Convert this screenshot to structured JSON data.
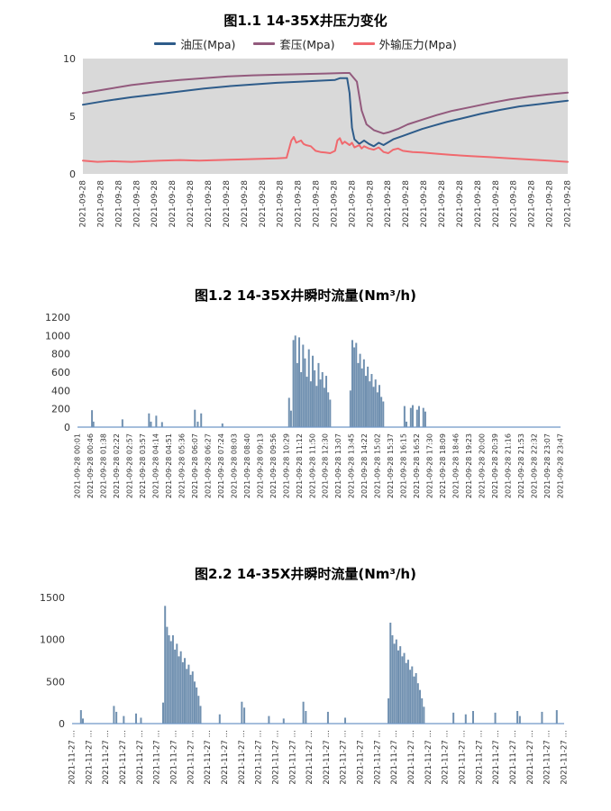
{
  "chart_data": [
    {
      "type": "line",
      "title": "图1.1 14-35X井压力变化",
      "ylim": [
        0,
        10
      ],
      "yticks": [
        0,
        5,
        10
      ],
      "plot_bg": "#d9d9d9",
      "legend_position": "top",
      "grid": false,
      "x_labels": [
        "2021-09-28",
        "2021-09-28",
        "2021-09-28",
        "2021-09-28",
        "2021-09-28",
        "2021-09-28",
        "2021-09-28",
        "2021-09-28",
        "2021-09-28",
        "2021-09-28",
        "2021-09-28",
        "2021-09-28",
        "2021-09-28",
        "2021-09-28",
        "2021-09-28",
        "2021-09-28",
        "2021-09-28",
        "2021-09-28",
        "2021-09-28",
        "2021-09-28",
        "2021-09-28",
        "2021-09-28",
        "2021-09-28",
        "2021-09-28",
        "2021-09-28",
        "2021-09-28",
        "2021-09-28",
        "2021-09-28"
      ],
      "series": [
        {
          "name": "油压(Mpa)",
          "color": "#2e5c8a",
          "points": [
            [
              0,
              6.0
            ],
            [
              0.05,
              6.35
            ],
            [
              0.1,
              6.65
            ],
            [
              0.15,
              6.9
            ],
            [
              0.2,
              7.15
            ],
            [
              0.25,
              7.4
            ],
            [
              0.3,
              7.6
            ],
            [
              0.35,
              7.75
            ],
            [
              0.4,
              7.9
            ],
            [
              0.45,
              8.0
            ],
            [
              0.5,
              8.1
            ],
            [
              0.52,
              8.15
            ],
            [
              0.53,
              8.3
            ],
            [
              0.545,
              8.3
            ],
            [
              0.55,
              7.0
            ],
            [
              0.555,
              4.0
            ],
            [
              0.56,
              3.0
            ],
            [
              0.57,
              2.6
            ],
            [
              0.58,
              2.9
            ],
            [
              0.59,
              2.6
            ],
            [
              0.6,
              2.4
            ],
            [
              0.61,
              2.7
            ],
            [
              0.62,
              2.5
            ],
            [
              0.64,
              3.0
            ],
            [
              0.66,
              3.3
            ],
            [
              0.68,
              3.6
            ],
            [
              0.7,
              3.9
            ],
            [
              0.72,
              4.15
            ],
            [
              0.75,
              4.5
            ],
            [
              0.78,
              4.8
            ],
            [
              0.82,
              5.2
            ],
            [
              0.86,
              5.55
            ],
            [
              0.9,
              5.85
            ],
            [
              0.94,
              6.05
            ],
            [
              0.97,
              6.2
            ],
            [
              1,
              6.35
            ]
          ]
        },
        {
          "name": "套压(Mpa)",
          "color": "#935a7d",
          "points": [
            [
              0,
              7.0
            ],
            [
              0.05,
              7.35
            ],
            [
              0.1,
              7.7
            ],
            [
              0.15,
              7.95
            ],
            [
              0.2,
              8.15
            ],
            [
              0.25,
              8.3
            ],
            [
              0.3,
              8.45
            ],
            [
              0.35,
              8.55
            ],
            [
              0.4,
              8.6
            ],
            [
              0.45,
              8.65
            ],
            [
              0.5,
              8.7
            ],
            [
              0.54,
              8.75
            ],
            [
              0.55,
              8.75
            ],
            [
              0.565,
              8.0
            ],
            [
              0.575,
              5.5
            ],
            [
              0.585,
              4.3
            ],
            [
              0.6,
              3.8
            ],
            [
              0.62,
              3.5
            ],
            [
              0.63,
              3.6
            ],
            [
              0.65,
              3.9
            ],
            [
              0.67,
              4.3
            ],
            [
              0.7,
              4.7
            ],
            [
              0.73,
              5.1
            ],
            [
              0.76,
              5.45
            ],
            [
              0.8,
              5.8
            ],
            [
              0.84,
              6.15
            ],
            [
              0.88,
              6.45
            ],
            [
              0.92,
              6.7
            ],
            [
              0.96,
              6.9
            ],
            [
              1,
              7.05
            ]
          ]
        },
        {
          "name": "外输压力(Mpa)",
          "color": "#f0696e",
          "points": [
            [
              0,
              1.15
            ],
            [
              0.03,
              1.05
            ],
            [
              0.06,
              1.1
            ],
            [
              0.1,
              1.05
            ],
            [
              0.13,
              1.1
            ],
            [
              0.16,
              1.15
            ],
            [
              0.2,
              1.2
            ],
            [
              0.24,
              1.15
            ],
            [
              0.28,
              1.2
            ],
            [
              0.32,
              1.25
            ],
            [
              0.36,
              1.3
            ],
            [
              0.4,
              1.35
            ],
            [
              0.42,
              1.4
            ],
            [
              0.43,
              2.9
            ],
            [
              0.435,
              3.2
            ],
            [
              0.44,
              2.7
            ],
            [
              0.45,
              2.9
            ],
            [
              0.455,
              2.6
            ],
            [
              0.46,
              2.5
            ],
            [
              0.47,
              2.4
            ],
            [
              0.475,
              2.2
            ],
            [
              0.48,
              2.0
            ],
            [
              0.49,
              1.9
            ],
            [
              0.5,
              1.85
            ],
            [
              0.51,
              1.8
            ],
            [
              0.52,
              2.0
            ],
            [
              0.525,
              2.9
            ],
            [
              0.53,
              3.1
            ],
            [
              0.535,
              2.6
            ],
            [
              0.54,
              2.8
            ],
            [
              0.55,
              2.5
            ],
            [
              0.555,
              2.7
            ],
            [
              0.56,
              2.3
            ],
            [
              0.57,
              2.5
            ],
            [
              0.575,
              2.2
            ],
            [
              0.58,
              2.4
            ],
            [
              0.59,
              2.2
            ],
            [
              0.6,
              2.1
            ],
            [
              0.61,
              2.3
            ],
            [
              0.62,
              1.9
            ],
            [
              0.63,
              1.8
            ],
            [
              0.64,
              2.1
            ],
            [
              0.65,
              2.2
            ],
            [
              0.66,
              2.0
            ],
            [
              0.68,
              1.9
            ],
            [
              0.7,
              1.85
            ],
            [
              0.73,
              1.75
            ],
            [
              0.76,
              1.65
            ],
            [
              0.8,
              1.55
            ],
            [
              0.84,
              1.45
            ],
            [
              0.88,
              1.35
            ],
            [
              0.92,
              1.25
            ],
            [
              0.96,
              1.15
            ],
            [
              1,
              1.05
            ]
          ]
        }
      ]
    },
    {
      "type": "bar",
      "title": "图1.2 14-35X井瞬时流量(Nm³/h)",
      "ylim": [
        0,
        1200
      ],
      "yticks": [
        0,
        200,
        400,
        600,
        800,
        1000,
        1200
      ],
      "bar_color": "#7090b0",
      "axis_color": "#6f96c6",
      "grid": false,
      "x_labels": [
        "2021-09-28 00:01",
        "2021-09-28 00:46",
        "2021-09-28 01:38",
        "2021-09-28 02:22",
        "2021-09-28 02:57",
        "2021-09-28 03:57",
        "2021-09-28 04:14",
        "2021-09-28 04:51",
        "2021-09-28 05:36",
        "2021-09-28 06:07",
        "2021-09-28 06:27",
        "2021-09-28 07:24",
        "2021-09-28 08:03",
        "2021-09-28 08:40",
        "2021-09-28 09:13",
        "2021-09-28 09:56",
        "2021-09-28 10:29",
        "2021-09-28 11:12",
        "2021-09-28 11:50",
        "2021-09-28 12:30",
        "2021-09-28 13:07",
        "2021-09-28 13:45",
        "2021-09-28 14:22",
        "2021-09-28 15:02",
        "2021-09-28 15:37",
        "2021-09-28 16:15",
        "2021-09-28 16:52",
        "2021-09-28 17:30",
        "2021-09-28 18:09",
        "2021-09-28 18:46",
        "2021-09-28 19:23",
        "2021-09-28 20:00",
        "2021-09-28 20:39",
        "2021-09-28 21:16",
        "2021-09-28 21:53",
        "2021-09-28 22:32",
        "2021-09-28 23:07",
        "2021-09-28 23:47"
      ],
      "points": [
        [
          0.03,
          185
        ],
        [
          0.033,
          60
        ],
        [
          0.093,
          85
        ],
        [
          0.148,
          150
        ],
        [
          0.152,
          60
        ],
        [
          0.163,
          125
        ],
        [
          0.175,
          55
        ],
        [
          0.243,
          190
        ],
        [
          0.249,
          60
        ],
        [
          0.256,
          150
        ],
        [
          0.3,
          40
        ],
        [
          0.438,
          320
        ],
        [
          0.442,
          180
        ],
        [
          0.447,
          950
        ],
        [
          0.451,
          1000
        ],
        [
          0.455,
          700
        ],
        [
          0.459,
          980
        ],
        [
          0.463,
          600
        ],
        [
          0.467,
          900
        ],
        [
          0.471,
          750
        ],
        [
          0.475,
          550
        ],
        [
          0.479,
          850
        ],
        [
          0.483,
          500
        ],
        [
          0.487,
          780
        ],
        [
          0.491,
          620
        ],
        [
          0.495,
          450
        ],
        [
          0.499,
          700
        ],
        [
          0.503,
          520
        ],
        [
          0.507,
          600
        ],
        [
          0.511,
          430
        ],
        [
          0.515,
          560
        ],
        [
          0.519,
          380
        ],
        [
          0.523,
          300
        ],
        [
          0.565,
          400
        ],
        [
          0.569,
          950
        ],
        [
          0.573,
          870
        ],
        [
          0.577,
          920
        ],
        [
          0.581,
          700
        ],
        [
          0.585,
          800
        ],
        [
          0.589,
          640
        ],
        [
          0.593,
          740
        ],
        [
          0.597,
          560
        ],
        [
          0.601,
          660
        ],
        [
          0.605,
          500
        ],
        [
          0.609,
          580
        ],
        [
          0.613,
          440
        ],
        [
          0.617,
          520
        ],
        [
          0.621,
          380
        ],
        [
          0.625,
          460
        ],
        [
          0.629,
          330
        ],
        [
          0.633,
          280
        ],
        [
          0.677,
          230
        ],
        [
          0.681,
          60
        ],
        [
          0.69,
          210
        ],
        [
          0.694,
          240
        ],
        [
          0.703,
          190
        ],
        [
          0.707,
          230
        ],
        [
          0.716,
          210
        ],
        [
          0.72,
          170
        ]
      ]
    },
    {
      "type": "bar",
      "title": "图2.2 14-35X井瞬时流量(Nm³/h)",
      "ylim": [
        0,
        1500
      ],
      "yticks": [
        0,
        500,
        1000,
        1500
      ],
      "bar_color": "#7090b0",
      "axis_color": "#6f96c6",
      "grid": false,
      "x_labels": [
        "2021-11-27 …",
        "2021-11-27 …",
        "2021-11-27 …",
        "2021-11-27 …",
        "2021-11-27 …",
        "2021-11-27 …",
        "2021-11-27 …",
        "2021-11-27 …",
        "2021-11-27 …",
        "2021-11-27 …",
        "2021-11-27 …",
        "2021-11-27 …",
        "2021-11-27 …",
        "2021-11-27 …",
        "2021-11-27 …",
        "2021-11-27 …",
        "2021-11-27 …",
        "2021-11-27 …",
        "2021-11-27 …",
        "2021-11-27 …",
        "2021-11-27 …",
        "2021-11-27 …",
        "2021-11-27 …",
        "2021-11-27 …",
        "2021-11-27 …",
        "2021-11-27 …",
        "2021-11-27 …",
        "2021-11-27 …",
        "2021-11-27 …",
        "2021-11-27 …"
      ],
      "points": [
        [
          0.018,
          160
        ],
        [
          0.022,
          60
        ],
        [
          0.085,
          210
        ],
        [
          0.09,
          140
        ],
        [
          0.105,
          90
        ],
        [
          0.13,
          120
        ],
        [
          0.14,
          70
        ],
        [
          0.185,
          250
        ],
        [
          0.189,
          1400
        ],
        [
          0.193,
          1150
        ],
        [
          0.197,
          1050
        ],
        [
          0.201,
          980
        ],
        [
          0.205,
          1050
        ],
        [
          0.209,
          880
        ],
        [
          0.213,
          950
        ],
        [
          0.217,
          800
        ],
        [
          0.221,
          860
        ],
        [
          0.225,
          730
        ],
        [
          0.229,
          780
        ],
        [
          0.233,
          650
        ],
        [
          0.237,
          700
        ],
        [
          0.241,
          580
        ],
        [
          0.245,
          620
        ],
        [
          0.249,
          500
        ],
        [
          0.253,
          430
        ],
        [
          0.257,
          330
        ],
        [
          0.261,
          210
        ],
        [
          0.3,
          110
        ],
        [
          0.345,
          260
        ],
        [
          0.35,
          190
        ],
        [
          0.4,
          90
        ],
        [
          0.43,
          60
        ],
        [
          0.47,
          260
        ],
        [
          0.475,
          150
        ],
        [
          0.52,
          140
        ],
        [
          0.555,
          70
        ],
        [
          0.643,
          300
        ],
        [
          0.647,
          1200
        ],
        [
          0.651,
          1050
        ],
        [
          0.655,
          950
        ],
        [
          0.659,
          1000
        ],
        [
          0.663,
          870
        ],
        [
          0.667,
          920
        ],
        [
          0.671,
          800
        ],
        [
          0.675,
          840
        ],
        [
          0.679,
          720
        ],
        [
          0.683,
          760
        ],
        [
          0.687,
          640
        ],
        [
          0.691,
          680
        ],
        [
          0.695,
          560
        ],
        [
          0.699,
          600
        ],
        [
          0.703,
          480
        ],
        [
          0.707,
          400
        ],
        [
          0.711,
          300
        ],
        [
          0.715,
          200
        ],
        [
          0.775,
          130
        ],
        [
          0.8,
          110
        ],
        [
          0.815,
          150
        ],
        [
          0.86,
          130
        ],
        [
          0.905,
          150
        ],
        [
          0.91,
          90
        ],
        [
          0.955,
          140
        ],
        [
          0.985,
          160
        ]
      ]
    }
  ]
}
